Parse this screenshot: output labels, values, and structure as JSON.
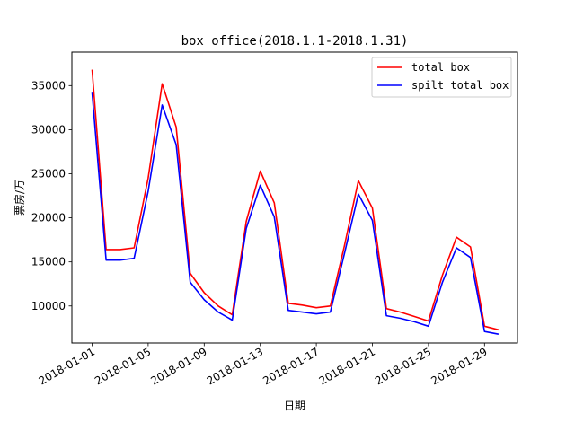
{
  "chart_data": {
    "type": "line",
    "title": "box office(2018.1.1-2018.1.31)",
    "xlabel": "日期",
    "ylabel": "票房/万",
    "x": [
      "2018-01-01",
      "2018-01-02",
      "2018-01-03",
      "2018-01-04",
      "2018-01-05",
      "2018-01-06",
      "2018-01-07",
      "2018-01-08",
      "2018-01-09",
      "2018-01-10",
      "2018-01-11",
      "2018-01-12",
      "2018-01-13",
      "2018-01-14",
      "2018-01-15",
      "2018-01-16",
      "2018-01-17",
      "2018-01-18",
      "2018-01-19",
      "2018-01-20",
      "2018-01-21",
      "2018-01-22",
      "2018-01-23",
      "2018-01-24",
      "2018-01-25",
      "2018-01-26",
      "2018-01-27",
      "2018-01-28",
      "2018-01-29",
      "2018-01-30"
    ],
    "xticks": [
      "2018-01-01",
      "2018-01-05",
      "2018-01-09",
      "2018-01-13",
      "2018-01-17",
      "2018-01-21",
      "2018-01-25",
      "2018-01-29"
    ],
    "yticks": [
      10000,
      15000,
      20000,
      25000,
      30000,
      35000
    ],
    "ylim": [
      5800,
      38800
    ],
    "grid": false,
    "legend_position": "top-right",
    "series": [
      {
        "name": "total box",
        "color": "#ff0000",
        "values": [
          36800,
          16400,
          16400,
          16600,
          24500,
          35200,
          30300,
          13700,
          11500,
          10000,
          9000,
          19600,
          25300,
          21700,
          10300,
          10100,
          9800,
          10000,
          16800,
          24200,
          21100,
          9700,
          9300,
          8800,
          8300,
          13500,
          17800,
          16700,
          7700,
          7300
        ]
      },
      {
        "name": "spilt total box",
        "color": "#0000ff",
        "values": [
          34200,
          15200,
          15200,
          15400,
          23000,
          32800,
          28300,
          12700,
          10700,
          9300,
          8400,
          18800,
          23700,
          20100,
          9500,
          9300,
          9100,
          9300,
          15900,
          22700,
          19700,
          8900,
          8600,
          8200,
          7700,
          12700,
          16600,
          15500,
          7100,
          6800
        ]
      }
    ]
  }
}
